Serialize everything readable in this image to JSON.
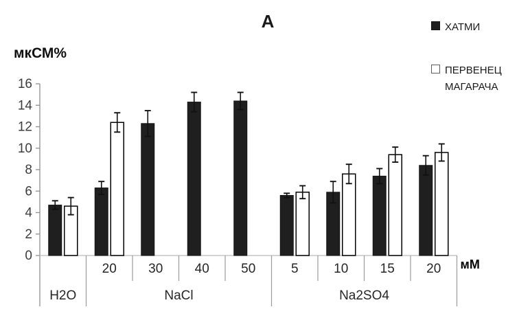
{
  "chart_data": {
    "type": "bar",
    "title": "А",
    "ylabel": "мкСМ%",
    "x_unit_label": "мМ",
    "ylim": [
      0,
      16
    ],
    "y_ticks": [
      0,
      2,
      4,
      6,
      8,
      10,
      12,
      14,
      16
    ],
    "grid": false,
    "legend_position": "top-right",
    "categories": [
      "",
      "20",
      "30",
      "40",
      "50",
      "5",
      "10",
      "15",
      "20"
    ],
    "category_groups": [
      {
        "label": "H2O",
        "span": 1
      },
      {
        "label": "NaCl",
        "span": 4
      },
      {
        "label": "Na2SO4",
        "span": 4
      }
    ],
    "series": [
      {
        "name": "ХАТМИ",
        "color": "#1f1f1f",
        "border": "#141414",
        "values": [
          4.7,
          6.3,
          12.3,
          14.3,
          14.4,
          5.6,
          5.9,
          7.4,
          8.4
        ],
        "errors": [
          0.4,
          0.6,
          1.2,
          0.9,
          0.8,
          0.2,
          1.0,
          0.7,
          0.9
        ]
      },
      {
        "name": "ПЕРВЕНЕЦ МАГАРАЧА",
        "color": "#ffffff",
        "border": "#000000",
        "values": [
          4.6,
          12.4,
          null,
          null,
          null,
          5.9,
          7.6,
          9.4,
          9.6
        ],
        "errors": [
          0.8,
          0.9,
          null,
          null,
          null,
          0.6,
          0.9,
          0.7,
          0.8
        ]
      }
    ],
    "colors": {
      "axis_line": "#8f8f8f",
      "baseline": "#c6c6c6",
      "separator": "#9b9b9b",
      "error_bar": "#111111",
      "tick_text": "#3d3d3d",
      "label_text": "#262626",
      "unit_text": "#000000"
    }
  }
}
